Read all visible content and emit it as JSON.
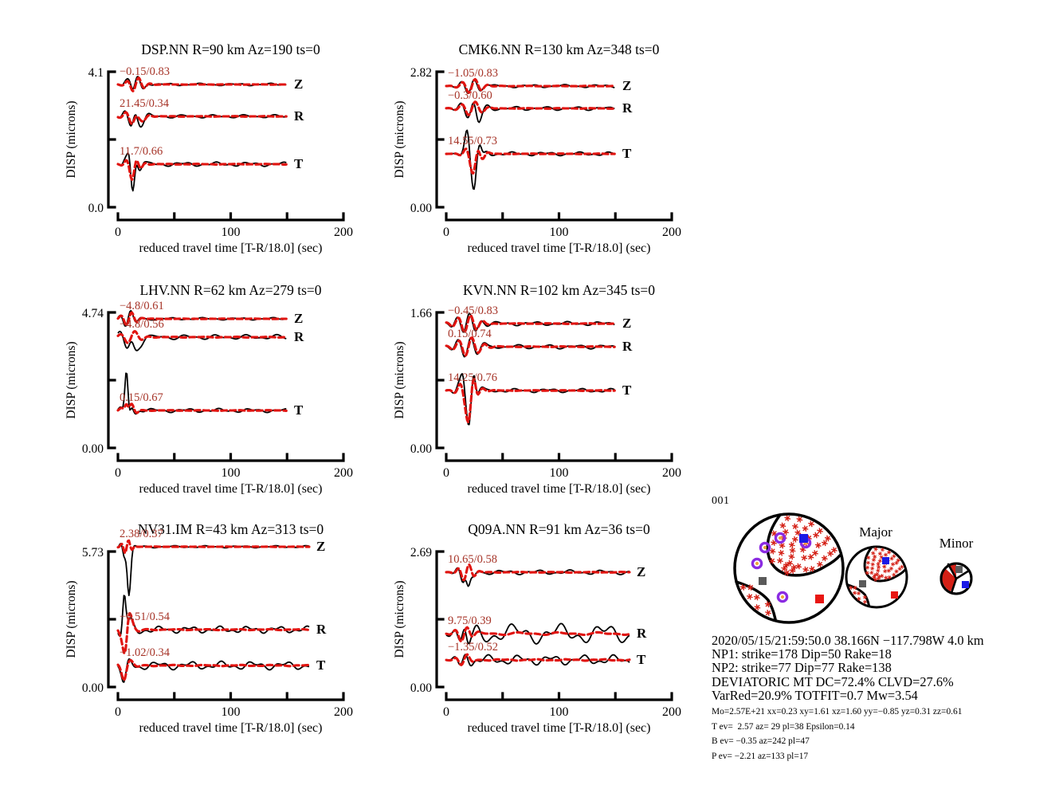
{
  "figure_id": "001",
  "colors": {
    "observed": "#000000",
    "synthetic": "#e01410",
    "annotation": "#a63428",
    "star": "#d42016",
    "purple_ring": "#8b2be2",
    "ring_center": "#f0a73c",
    "blue_square": "#1a1ae6",
    "gray_square": "#5a5a5a",
    "red_square": "#e81612"
  },
  "chart_data": {
    "type": "line",
    "xlabel": "reduced travel time [T-R/18.0] (sec)",
    "ylabel": "DISP (microns)",
    "xlim": [
      0,
      200
    ],
    "xticks": [
      0,
      50,
      100,
      150,
      200
    ],
    "xtick_labels": [
      "0",
      "",
      "100",
      "",
      "200"
    ],
    "series": [
      {
        "name": "observed",
        "style": "solid black line"
      },
      {
        "name": "synthetic",
        "style": "thick dashed red line"
      }
    ],
    "panels": [
      {
        "station": "DSP.NN",
        "title": "DSP.NN R=90 km Az=190 ts=0",
        "R_km": 90,
        "Az": 190,
        "ts": 0,
        "ymax_label": "4.1",
        "ymin_label": "0.0",
        "traces": [
          {
            "component": "Z",
            "annotation": "−0.15/0.83"
          },
          {
            "component": "R",
            "annotation": "21.45/0.34"
          },
          {
            "component": "T",
            "annotation": "11.7/0.66"
          }
        ]
      },
      {
        "station": "CMK6.NN",
        "title": "CMK6.NN R=130 km Az=348 ts=0",
        "R_km": 130,
        "Az": 348,
        "ts": 0,
        "ymax_label": "2.82",
        "ymin_label": "0.00",
        "traces": [
          {
            "component": "Z",
            "annotation": "−1.05/0.83"
          },
          {
            "component": "R",
            "annotation": "−0.3/0.60"
          },
          {
            "component": "T",
            "annotation": "14.55/0.73"
          }
        ]
      },
      {
        "station": "LHV.NN",
        "title": "LHV.NN R=62 km Az=279 ts=0",
        "R_km": 62,
        "Az": 279,
        "ts": 0,
        "ymax_label": "4.74",
        "ymin_label": "0.00",
        "traces": [
          {
            "component": "Z",
            "annotation": "−4.8/0.61"
          },
          {
            "component": "R",
            "annotation": "−4.8/0.56"
          },
          {
            "component": "T",
            "annotation": "0.15/0.67"
          }
        ]
      },
      {
        "station": "KVN.NN",
        "title": "KVN.NN R=102 km Az=345 ts=0",
        "R_km": 102,
        "Az": 345,
        "ts": 0,
        "ymax_label": "1.66",
        "ymin_label": "0.00",
        "traces": [
          {
            "component": "Z",
            "annotation": "−0.45/0.83"
          },
          {
            "component": "R",
            "annotation": "0.15/0.74"
          },
          {
            "component": "T",
            "annotation": "14.25/0.76"
          }
        ]
      },
      {
        "station": "NV31.IM",
        "title": "NV31.IM R=43 km Az=313 ts=0",
        "R_km": 43,
        "Az": 313,
        "ts": 0,
        "ymax_label": "5.73",
        "ymin_label": "0.00",
        "traces": [
          {
            "component": "Z",
            "annotation": "2.38/0.37"
          },
          {
            "component": "R",
            "annotation": "−0.51/0.54"
          },
          {
            "component": "T",
            "annotation": "−1.02/0.34"
          }
        ]
      },
      {
        "station": "Q09A.NN",
        "title": "Q09A.NN R=91 km Az=36 ts=0",
        "R_km": 91,
        "Az": 36,
        "ts": 0,
        "ymax_label": "2.69",
        "ymin_label": "0.00",
        "traces": [
          {
            "component": "Z",
            "annotation": "10.65/0.58"
          },
          {
            "component": "R",
            "annotation": "9.75/0.39"
          },
          {
            "component": "T",
            "annotation": "−1.35/0.52"
          }
        ]
      }
    ],
    "beachballs": {
      "main_id": "001",
      "major_label": "Major",
      "minor_label": "Minor"
    }
  },
  "solution": {
    "origin": "2020/05/15/21:59:50.0 38.166N −117.798W 4.0 km",
    "np1": "NP1: strike=178 Dip=50 Rake=18",
    "np2": "NP2: strike=77 Dip=77 Rake=138",
    "mt": "DEVIATORIC MT DC=72.4% CLVD=27.6%",
    "fit": "VarRed=20.9% TOTFIT=0.7 Mw=3.54",
    "moment": "Mo=2.57E+21 xx=0.23 xy=1.61 xz=1.60 yy=−0.85 yz=0.31 zz=0.61",
    "t_axis": "T ev=  2.57 az= 29 pl=38 Epsilon=0.14",
    "b_axis": "B ev= −0.35 az=242 pl=47",
    "p_axis": "P ev= −2.21 az=133 pl=17"
  }
}
